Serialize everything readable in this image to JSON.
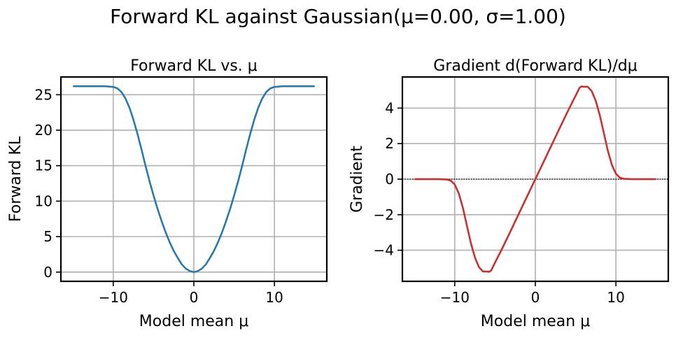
{
  "figure": {
    "suptitle": "Forward KL against Gaussian(μ=0.00, σ=1.00)"
  },
  "chart_data": [
    {
      "type": "line",
      "title": "Forward KL vs. μ",
      "xlabel": "Model mean μ",
      "ylabel": "Forward KL",
      "xlim": [
        -16.5,
        16.5
      ],
      "ylim": [
        -1.3,
        27.5
      ],
      "xticks": [
        -10,
        0,
        10
      ],
      "yticks": [
        0,
        5,
        10,
        15,
        20,
        25
      ],
      "grid": true,
      "color": "#1f77b4",
      "series": [
        {
          "x": [
            -15,
            -14,
            -13,
            -12,
            -11,
            -10,
            -9.5,
            -9,
            -8.5,
            -8,
            -7.5,
            -7,
            -6.5,
            -6,
            -5.5,
            -5,
            -4.5,
            -4,
            -3.5,
            -3,
            -2.5,
            -2,
            -1.5,
            -1,
            -0.5,
            0,
            0.5,
            1,
            1.5,
            2,
            2.5,
            3,
            3.5,
            4,
            4.5,
            5,
            5.5,
            6,
            6.5,
            7,
            7.5,
            8,
            8.5,
            9,
            9.5,
            10,
            11,
            12,
            13,
            14,
            15
          ],
          "values": [
            26.2,
            26.2,
            26.2,
            26.2,
            26.2,
            26.1,
            25.9,
            25.4,
            24.5,
            23.2,
            21.5,
            19.5,
            17.3,
            15.0,
            12.8,
            10.8,
            8.9,
            7.2,
            5.6,
            4.2,
            3.0,
            2.0,
            1.1,
            0.5,
            0.15,
            0.0,
            0.15,
            0.5,
            1.1,
            2.0,
            3.0,
            4.2,
            5.6,
            7.2,
            8.9,
            10.8,
            12.8,
            15.0,
            17.3,
            19.5,
            21.5,
            23.2,
            24.5,
            25.4,
            25.9,
            26.1,
            26.2,
            26.2,
            26.2,
            26.2,
            26.2
          ]
        }
      ]
    },
    {
      "type": "line",
      "title": "Gradient d(Forward KL)/dμ",
      "xlabel": "Model mean μ",
      "ylabel": "Gradient",
      "xlim": [
        -16.5,
        16.5
      ],
      "ylim": [
        -5.75,
        5.75
      ],
      "xticks": [
        -10,
        0,
        10
      ],
      "yticks": [
        -4,
        -2,
        0,
        2,
        4
      ],
      "grid": true,
      "color": "#d62728",
      "reference_line": {
        "y": 0,
        "style": "dotted"
      },
      "series": [
        {
          "x": [
            -15,
            -14,
            -13,
            -12,
            -11,
            -10.5,
            -10,
            -9.5,
            -9,
            -8.5,
            -8,
            -7.5,
            -7,
            -6.5,
            -6,
            -5.75,
            -5.5,
            -5,
            -4,
            -3,
            -2,
            -1,
            0,
            1,
            2,
            3,
            4,
            5,
            5.5,
            5.75,
            6,
            6.5,
            7,
            7.5,
            8,
            8.5,
            9,
            9.5,
            10,
            10.5,
            11,
            12,
            13,
            14,
            15
          ],
          "values": [
            0,
            0,
            0,
            0,
            -0.02,
            -0.08,
            -0.3,
            -0.8,
            -1.6,
            -2.6,
            -3.6,
            -4.4,
            -4.95,
            -5.2,
            -5.2,
            -5.22,
            -5.15,
            -4.7,
            -3.8,
            -2.85,
            -1.9,
            -0.95,
            0,
            0.95,
            1.9,
            2.85,
            3.8,
            4.7,
            5.15,
            5.22,
            5.2,
            5.2,
            4.95,
            4.4,
            3.6,
            2.6,
            1.6,
            0.8,
            0.3,
            0.08,
            0.02,
            0,
            0,
            0,
            0
          ]
        }
      ]
    }
  ]
}
